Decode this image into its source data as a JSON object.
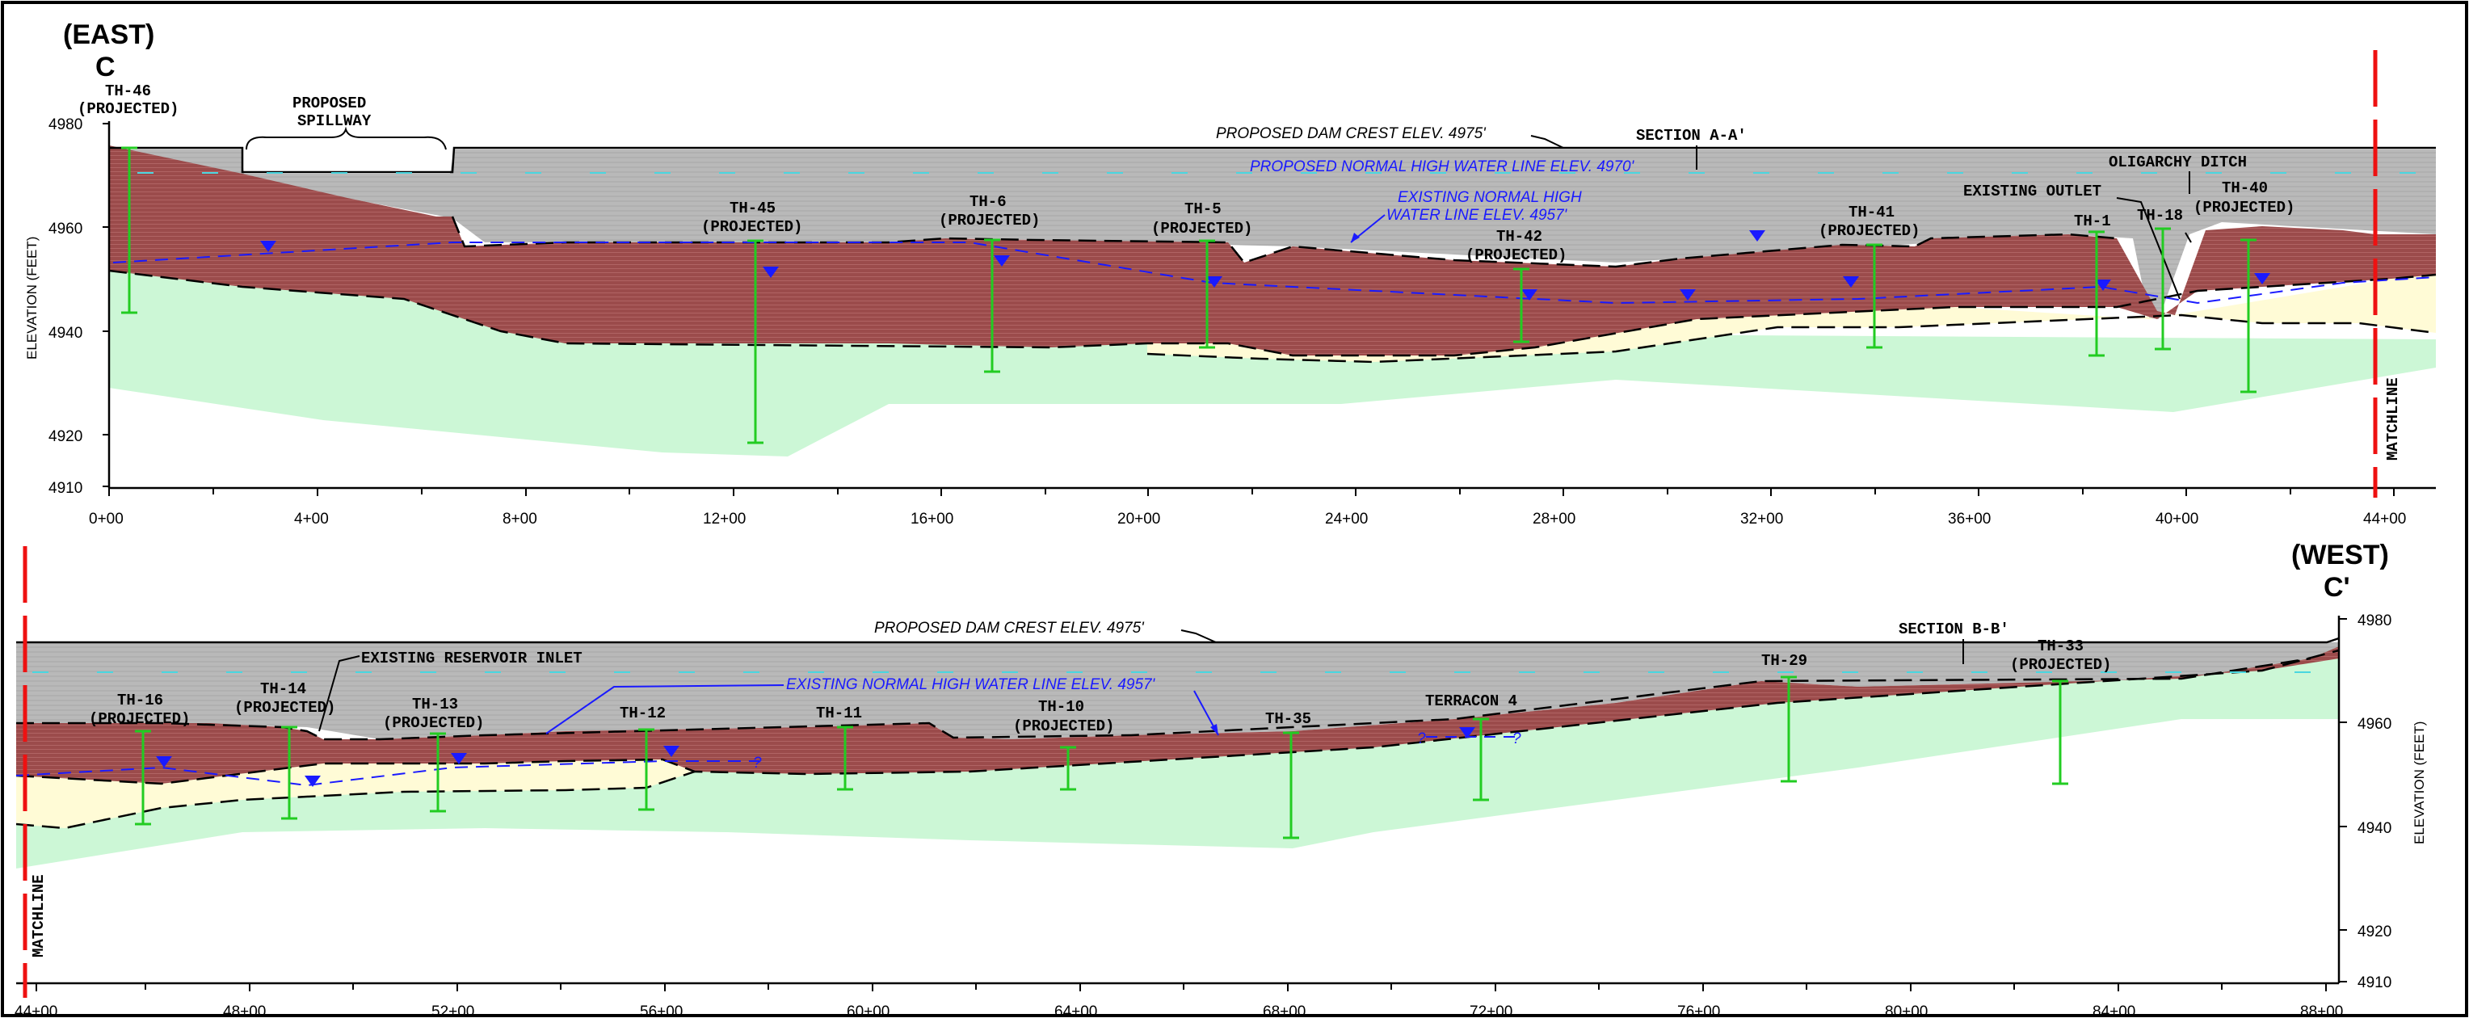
{
  "colors": {
    "dam_fill": "#b9b9b9",
    "clay_fill": "#9b4b4b",
    "sand_fill": "#fffbd6",
    "bedrock_fill": "#ccf7d6",
    "boring": "#22cc22",
    "water": "#1a1aff",
    "matchline": "#ee1111"
  },
  "top": {
    "dir_top": "(EAST)",
    "dir_bot": "C",
    "y_axis_label": "ELEVATION (FEET)",
    "y_ticks": [
      "4980",
      "4960",
      "4940",
      "4920",
      "4910"
    ],
    "x_ticks": [
      "0+00",
      "4+00",
      "8+00",
      "12+00",
      "16+00",
      "20+00",
      "24+00",
      "28+00",
      "32+00",
      "36+00",
      "40+00",
      "44+00"
    ],
    "spillway": [
      "PROPOSED",
      "SPILLWAY"
    ],
    "dam_crest": "PROPOSED DAM CREST ELEV. 4975'",
    "section": "SECTION A-A'",
    "normal_hw": "PROPOSED NORMAL HIGH WATER LINE ELEV. 4970'",
    "existing_hw": [
      "EXISTING NORMAL HIGH",
      "WATER LINE ELEV. 4957'"
    ],
    "oligarchy": "OLIGARCHY DITCH",
    "outlet": "EXISTING OUTLET",
    "matchline": "MATCHLINE",
    "borings": [
      {
        "name": "TH-46",
        "sub": "(PROJECTED)"
      },
      {
        "name": "TH-45",
        "sub": "(PROJECTED)"
      },
      {
        "name": "TH-6",
        "sub": "(PROJECTED)"
      },
      {
        "name": "TH-5",
        "sub": "(PROJECTED)"
      },
      {
        "name": "TH-42",
        "sub": "(PROJECTED)"
      },
      {
        "name": "TH-41",
        "sub": "(PROJECTED)"
      },
      {
        "name": "TH-1",
        "sub": ""
      },
      {
        "name": "TH-18",
        "sub": ""
      },
      {
        "name": "TH-40",
        "sub": "(PROJECTED)"
      }
    ]
  },
  "bottom": {
    "dir_top": "(WEST)",
    "dir_bot": "C'",
    "y_axis_label": "ELEVATION (FEET)",
    "y_ticks": [
      "4980",
      "4960",
      "4940",
      "4920",
      "4910"
    ],
    "x_ticks": [
      "44+00",
      "48+00",
      "52+00",
      "56+00",
      "60+00",
      "64+00",
      "68+00",
      "72+00",
      "76+00",
      "80+00",
      "84+00",
      "88+00"
    ],
    "dam_crest": "PROPOSED DAM CREST ELEV. 4975'",
    "section": "SECTION B-B'",
    "existing_hw": "EXISTING NORMAL HIGH WATER LINE ELEV. 4957'",
    "inlet": "EXISTING RESERVOIR INLET",
    "matchline": "MATCHLINE",
    "borings": [
      {
        "name": "TH-16",
        "sub": "(PROJECTED)"
      },
      {
        "name": "TH-14",
        "sub": "(PROJECTED)"
      },
      {
        "name": "TH-13",
        "sub": "(PROJECTED)"
      },
      {
        "name": "TH-12",
        "sub": ""
      },
      {
        "name": "TH-11",
        "sub": ""
      },
      {
        "name": "TH-10",
        "sub": "(PROJECTED)"
      },
      {
        "name": "TH-35",
        "sub": ""
      },
      {
        "name": "TERRACON 4",
        "sub": ""
      },
      {
        "name": "TH-29",
        "sub": ""
      },
      {
        "name": "TH-33",
        "sub": "(PROJECTED)"
      }
    ]
  }
}
